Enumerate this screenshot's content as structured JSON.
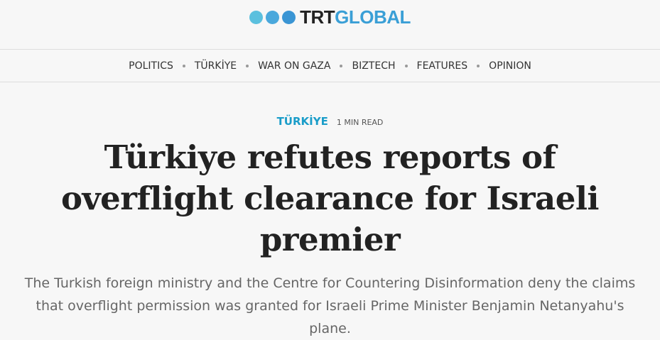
{
  "header": {
    "logo": {
      "part1": "TRT",
      "part2": "GLOBAL"
    }
  },
  "nav": {
    "items": [
      "POLITICS",
      "TÜRKİYE",
      "WAR ON GAZA",
      "BIZTECH",
      "FEATURES",
      "OPINION"
    ]
  },
  "article": {
    "category": "TÜRKİYE",
    "read_time": "1 MIN READ",
    "title": "Türkiye refutes reports of overflight clearance for Israeli premier",
    "subtitle": "The Turkish foreign ministry and the Centre for Countering Disinformation deny the claims that overflight permission was granted for Israeli Prime Minister Benjamin Netanyahu's plane."
  }
}
